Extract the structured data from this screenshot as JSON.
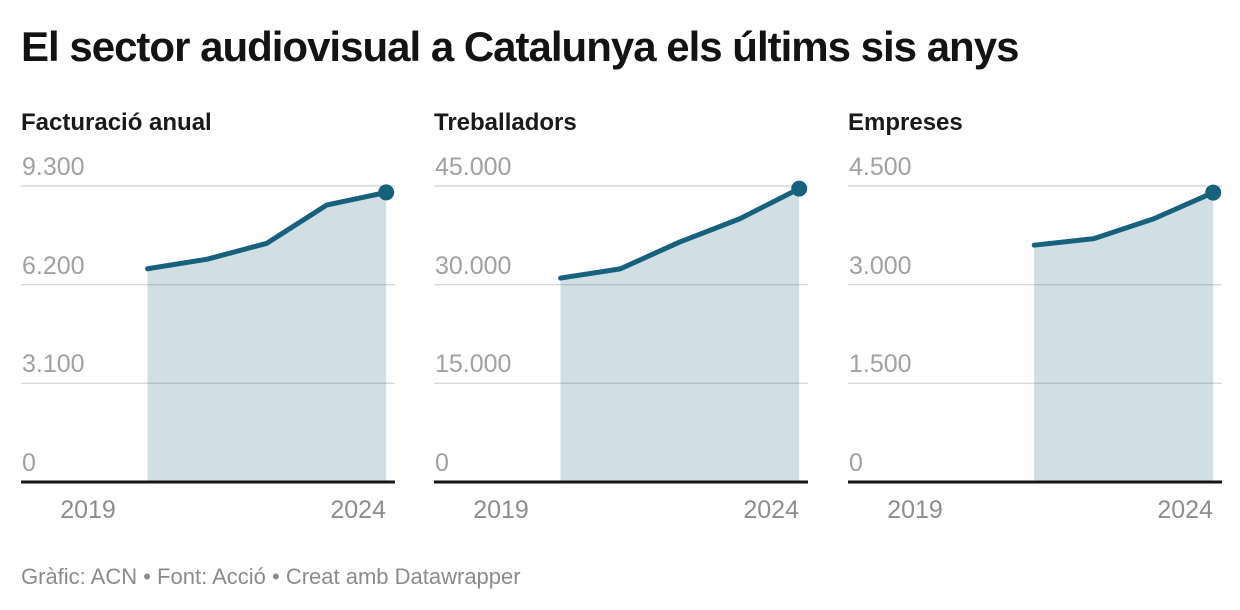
{
  "header": {
    "title": "El sector audiovisual a Catalunya els últims sis anys"
  },
  "footer": {
    "text": "Gràfic: ACN • Font: Acció • Creat amb Datawrapper"
  },
  "colors": {
    "accent": "#17617c",
    "area": "rgba(23,97,124,0.2)",
    "grid": "#d9d9d9",
    "axis": "#161616"
  },
  "chart_data": [
    {
      "type": "area",
      "title": "Facturació anual",
      "x": [
        2020,
        2021,
        2022,
        2023,
        2024
      ],
      "values": [
        6700,
        7000,
        7500,
        8700,
        9100
      ],
      "xlim": [
        2019,
        2024
      ],
      "ylim": [
        0,
        9300
      ],
      "yticks": [
        9300,
        6200,
        3100,
        0
      ],
      "ytick_labels": [
        "9.300",
        "6.200",
        "3.100",
        "0"
      ],
      "xticks": [
        2019,
        2024
      ],
      "xtick_labels": [
        "2019",
        "2024"
      ],
      "grid": true,
      "legend": "none",
      "endpoint_dot": true
    },
    {
      "type": "area",
      "title": "Treballadors",
      "x": [
        2020,
        2021,
        2022,
        2023,
        2024
      ],
      "values": [
        31000,
        32400,
        36500,
        40000,
        44600
      ],
      "xlim": [
        2019,
        2024
      ],
      "ylim": [
        0,
        45000
      ],
      "yticks": [
        45000,
        30000,
        15000,
        0
      ],
      "ytick_labels": [
        "45.000",
        "30.000",
        "15.000",
        "0"
      ],
      "xticks": [
        2019,
        2024
      ],
      "xtick_labels": [
        "2019",
        "2024"
      ],
      "grid": true,
      "legend": "none",
      "endpoint_dot": true
    },
    {
      "type": "area",
      "title": "Empreses",
      "x": [
        2021,
        2022,
        2023,
        2024
      ],
      "values": [
        3600,
        3700,
        4000,
        4400
      ],
      "xlim": [
        2019,
        2024
      ],
      "ylim": [
        0,
        4500
      ],
      "yticks": [
        4500,
        3000,
        1500,
        0
      ],
      "ytick_labels": [
        "4.500",
        "3.000",
        "1.500",
        "0"
      ],
      "xticks": [
        2019,
        2024
      ],
      "xtick_labels": [
        "2019",
        "2024"
      ],
      "grid": true,
      "legend": "none",
      "endpoint_dot": true
    }
  ]
}
